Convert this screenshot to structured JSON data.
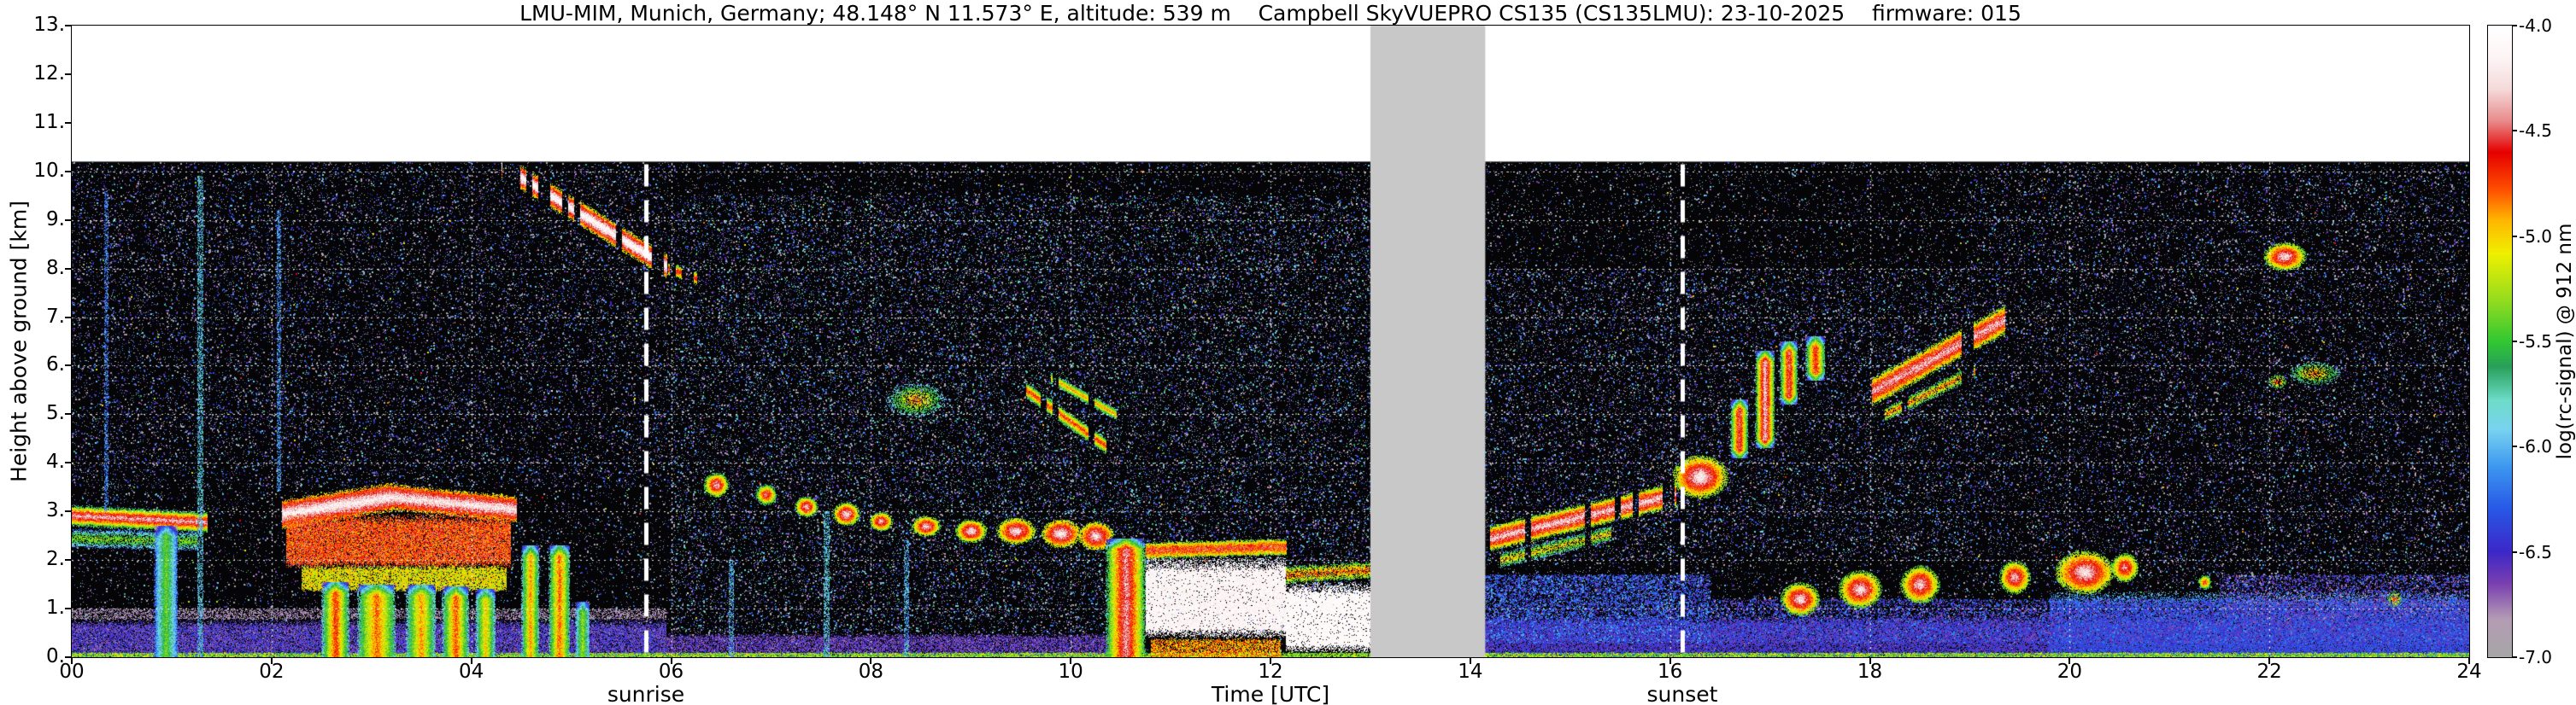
{
  "title": "LMU-MIM, Munich, Germany; 48.148° N 11.573° E, altitude: 539 m    Campbell SkyVUEPRO CS135 (CS135LMU): 23-10-2025    firmware: 015",
  "axes": {
    "ylabel": "Height above ground [km]",
    "xlabel": "Time [UTC]",
    "ylim": [
      0,
      13
    ],
    "xlim": [
      0,
      24
    ],
    "yticks": [
      "13.",
      "12.",
      "11.",
      "10.",
      "9.",
      "8.",
      "7.",
      "6.",
      "5.",
      "4.",
      "3.",
      "2.",
      "1.",
      "0."
    ],
    "xticks": [
      "00",
      "02",
      "04",
      "06",
      "08",
      "10",
      "12",
      "14",
      "16",
      "18",
      "20",
      "22",
      "24"
    ],
    "grid": "white dotted, 1 km horizontal spacing, 2 h vertical spacing"
  },
  "annotations": {
    "sunrise": {
      "label": "sunrise",
      "time_utc": 5.75,
      "line": "white dashed vertical"
    },
    "sunset": {
      "label": "sunset",
      "time_utc": 16.12,
      "line": "white dashed vertical"
    }
  },
  "colorbar": {
    "label": "log(rc-signal) @ 912 nm",
    "ticks": [
      "-4.0",
      "-4.5",
      "-5.0",
      "-5.5",
      "-6.0",
      "-6.5",
      "-7.0"
    ],
    "min": -7.0,
    "max": -4.0,
    "stops": [
      {
        "v": -7.0,
        "c": "#a6a6a6"
      },
      {
        "v": -6.82,
        "c": "#b49cb4"
      },
      {
        "v": -6.65,
        "c": "#7a3fb0"
      },
      {
        "v": -6.5,
        "c": "#3c28c8"
      },
      {
        "v": -6.3,
        "c": "#2857e6"
      },
      {
        "v": -6.1,
        "c": "#3c96f0"
      },
      {
        "v": -5.92,
        "c": "#78d2f0"
      },
      {
        "v": -5.78,
        "c": "#6edcc8"
      },
      {
        "v": -5.62,
        "c": "#28a05a"
      },
      {
        "v": -5.5,
        "c": "#32c832"
      },
      {
        "v": -5.3,
        "c": "#96dc1e"
      },
      {
        "v": -5.08,
        "c": "#f0f000"
      },
      {
        "v": -4.92,
        "c": "#ffb400"
      },
      {
        "v": -4.78,
        "c": "#ff5000"
      },
      {
        "v": -4.6,
        "c": "#e60000"
      },
      {
        "v": -4.45,
        "c": "#e88c8c"
      },
      {
        "v": -4.3,
        "c": "#f5dada"
      },
      {
        "v": -4.15,
        "c": "#fdf5f5"
      },
      {
        "v": -4.0,
        "c": "#ffffff"
      }
    ]
  },
  "colors": {
    "background": "#ffffff",
    "data_background": "#050507",
    "missing_gray": "#c8c8c8",
    "grid": "#ffffff",
    "annotation_line": "#ffffff"
  },
  "chart_data": {
    "type": "heatmap",
    "x_axis": "Time [UTC], 0-24 h",
    "y_axis": "Height above ground [km], 0-13",
    "value": "log(rc-signal) @ 912 nm, color scale -7.0 to -4.0",
    "data_top_km": 10.2,
    "missing_interval": [
      13.0,
      14.15
    ],
    "base_noise": {
      "density": 0.045
    },
    "features": [
      {
        "kind": "layer",
        "t": [
          0,
          5.95
        ],
        "h": [
          0,
          0.78
        ],
        "v": -6.55,
        "jit": 0.45,
        "drop": 0.2
      },
      {
        "kind": "layer",
        "t": [
          0,
          5.95
        ],
        "h": [
          0.78,
          1.02
        ],
        "v": -6.82,
        "jit": 0.25,
        "drop": 0.5
      },
      {
        "kind": "layer",
        "t": [
          5.95,
          10.4
        ],
        "h": [
          0,
          0.5
        ],
        "v": -6.6,
        "jit": 0.35,
        "drop": 0.3
      },
      {
        "kind": "layer",
        "t": [
          14.15,
          24
        ],
        "h": [
          0,
          0.85
        ],
        "v": -6.5,
        "jit": 0.35,
        "drop": 0.2
      },
      {
        "kind": "layer",
        "t": [
          19.8,
          24
        ],
        "h": [
          0,
          1.35
        ],
        "v": -6.35,
        "vTop": -5.95,
        "jit": 0.35,
        "drop": 0.3
      },
      {
        "kind": "layer",
        "t": [
          0,
          24
        ],
        "h": [
          0,
          0.1
        ],
        "v": -5.35,
        "jit": 0.7,
        "drop": 0.15
      },
      {
        "kind": "noise",
        "t": [
          14.15,
          16.4
        ],
        "h": [
          0.3,
          1.7
        ],
        "density": 0.5,
        "vr": [
          -6.6,
          -6.0
        ]
      },
      {
        "kind": "noise",
        "t": [
          16.4,
          24
        ],
        "h": [
          0.3,
          1.2
        ],
        "density": 0.35,
        "vr": [
          -6.7,
          -6.1
        ]
      },
      {
        "kind": "noise",
        "t": [
          21.5,
          24
        ],
        "h": [
          0.8,
          1.7
        ],
        "density": 0.3,
        "vr": [
          -6.8,
          -6.2
        ]
      },
      {
        "kind": "noise",
        "t": [
          6,
          13
        ],
        "h": [
          0.5,
          9.5
        ],
        "density": 0.06,
        "vr": [
          -7,
          -5.6
        ]
      },
      {
        "kind": "noise",
        "t": [
          14.15,
          19
        ],
        "h": [
          2,
          8
        ],
        "density": 0.05,
        "vr": [
          -7,
          -5.8
        ]
      },
      {
        "kind": "noise",
        "t": [
          0,
          6
        ],
        "h": [
          3.5,
          10.1
        ],
        "density": 0.035,
        "vr": [
          -7,
          -5.9
        ]
      },
      {
        "kind": "noise",
        "t": [
          19,
          24
        ],
        "h": [
          1.5,
          10.1
        ],
        "density": 0.035,
        "vr": [
          -7,
          -5.9
        ]
      },
      {
        "kind": "streak",
        "p0": [
          0,
          2.92
        ],
        "p1": [
          1.35,
          2.78
        ],
        "th": 0.22,
        "core": -4.35,
        "edge": -5.8
      },
      {
        "kind": "streak",
        "p0": [
          0,
          2.45
        ],
        "p1": [
          1.25,
          2.4
        ],
        "th": 0.2,
        "core": -5.3,
        "edge": -6.3,
        "drop": 0.3
      },
      {
        "kind": "column",
        "t": [
          0.82,
          1.06
        ],
        "h": [
          0,
          2.7
        ],
        "core": -5.4,
        "edge": -6.3
      },
      {
        "kind": "spike",
        "t": 1.28,
        "w": 0.05,
        "h": [
          0,
          9.9
        ],
        "core": -5.9
      },
      {
        "kind": "spike",
        "t": 0.34,
        "w": 0.035,
        "h": [
          3,
          9.6
        ],
        "core": -6.2
      },
      {
        "kind": "spike",
        "t": 2.07,
        "w": 0.04,
        "h": [
          3.4,
          9.2
        ],
        "core": -6.1
      },
      {
        "kind": "streak",
        "p0": [
          2.1,
          2.95
        ],
        "p1": [
          3.2,
          3.3
        ],
        "th": 0.3,
        "core": -4.15,
        "edge": -5.1
      },
      {
        "kind": "streak",
        "p0": [
          3.2,
          3.3
        ],
        "p1": [
          4.45,
          3.05
        ],
        "th": 0.27,
        "core": -4.2,
        "edge": -5.1
      },
      {
        "kind": "layer",
        "t": [
          2.15,
          4.4
        ],
        "h": [
          1.85,
          2.95
        ],
        "v": -4.7,
        "jit": 0.55,
        "drop": 0.12
      },
      {
        "kind": "layer",
        "t": [
          2.3,
          4.35
        ],
        "h": [
          1.35,
          1.9
        ],
        "v": -5.1,
        "jit": 0.5,
        "drop": 0.15
      },
      {
        "kind": "column",
        "t": [
          2.5,
          2.78
        ],
        "h": [
          0,
          1.55
        ],
        "core": -4.7,
        "edge": -5.9
      },
      {
        "kind": "column",
        "t": [
          2.86,
          3.24
        ],
        "h": [
          0,
          1.5
        ],
        "core": -4.8,
        "edge": -5.8
      },
      {
        "kind": "column",
        "t": [
          3.34,
          3.64
        ],
        "h": [
          0,
          1.5
        ],
        "core": -4.9,
        "edge": -5.9
      },
      {
        "kind": "column",
        "t": [
          3.7,
          3.98
        ],
        "h": [
          0,
          1.45
        ],
        "core": -4.75,
        "edge": -5.9
      },
      {
        "kind": "column",
        "t": [
          4.04,
          4.24
        ],
        "h": [
          0,
          1.4
        ],
        "core": -5.0,
        "edge": -6.0
      },
      {
        "kind": "column",
        "t": [
          4.5,
          4.68
        ],
        "h": [
          0,
          2.3
        ],
        "core": -4.9,
        "edge": -5.9
      },
      {
        "kind": "column",
        "t": [
          4.77,
          4.99
        ],
        "h": [
          0,
          2.3
        ],
        "core": -4.8,
        "edge": -5.8
      },
      {
        "kind": "column",
        "t": [
          5.04,
          5.18
        ],
        "h": [
          0,
          1.15
        ],
        "core": -5.3,
        "edge": -6.1
      },
      {
        "kind": "streak",
        "p0": [
          4.3,
          10.12
        ],
        "p1": [
          5.95,
          8.05
        ],
        "th": 0.26,
        "core": -4.05,
        "edge": -5.3,
        "seg": 0.25
      },
      {
        "kind": "streak",
        "p0": [
          5.97,
          8.0
        ],
        "p1": [
          6.25,
          7.8
        ],
        "th": 0.14,
        "core": -4.6,
        "edge": -5.6,
        "seg": 0.3
      },
      {
        "kind": "blob",
        "c": [
          6.45,
          3.55
        ],
        "r": [
          0.13,
          0.26
        ],
        "core": -4.3,
        "edge": -5.6
      },
      {
        "kind": "blob",
        "c": [
          6.95,
          3.35
        ],
        "r": [
          0.11,
          0.22
        ],
        "core": -4.4,
        "edge": -5.7
      },
      {
        "kind": "blob",
        "c": [
          7.35,
          3.1
        ],
        "r": [
          0.12,
          0.22
        ],
        "core": -4.3,
        "edge": -5.6
      },
      {
        "kind": "blob",
        "c": [
          7.75,
          2.95
        ],
        "r": [
          0.14,
          0.25
        ],
        "core": -4.2,
        "edge": -5.5
      },
      {
        "kind": "blob",
        "c": [
          8.1,
          2.8
        ],
        "r": [
          0.12,
          0.2
        ],
        "core": -4.3,
        "edge": -5.5
      },
      {
        "kind": "blob",
        "c": [
          8.55,
          2.7
        ],
        "r": [
          0.15,
          0.22
        ],
        "core": -4.25,
        "edge": -5.5
      },
      {
        "kind": "blob",
        "c": [
          9.0,
          2.6
        ],
        "r": [
          0.16,
          0.25
        ],
        "core": -4.2,
        "edge": -5.5
      },
      {
        "kind": "blob",
        "c": [
          9.45,
          2.6
        ],
        "r": [
          0.2,
          0.28
        ],
        "core": -4.2,
        "edge": -5.4
      },
      {
        "kind": "blob",
        "c": [
          9.9,
          2.55
        ],
        "r": [
          0.2,
          0.3
        ],
        "core": -4.15,
        "edge": -5.3
      },
      {
        "kind": "blob",
        "c": [
          10.25,
          2.5
        ],
        "r": [
          0.18,
          0.3
        ],
        "core": -4.2,
        "edge": -5.3
      },
      {
        "kind": "blob",
        "c": [
          8.45,
          5.3
        ],
        "r": [
          0.3,
          0.35
        ],
        "core": -4.8,
        "edge": -6.0,
        "noisy": true
      },
      {
        "kind": "streak",
        "p0": [
          9.55,
          5.5
        ],
        "p1": [
          10.35,
          4.35
        ],
        "th": 0.17,
        "core": -4.7,
        "edge": -5.8,
        "seg": 0.3
      },
      {
        "kind": "streak",
        "p0": [
          9.8,
          5.75
        ],
        "p1": [
          10.45,
          5.0
        ],
        "th": 0.12,
        "core": -4.9,
        "edge": -5.9,
        "seg": 0.35
      },
      {
        "kind": "spike",
        "t": 7.55,
        "w": 0.05,
        "h": [
          0,
          3
        ],
        "core": -5.9
      },
      {
        "kind": "spike",
        "t": 8.35,
        "w": 0.04,
        "h": [
          0,
          2.4
        ],
        "core": -6.0
      },
      {
        "kind": "spike",
        "t": 6.6,
        "w": 0.04,
        "h": [
          0,
          2
        ],
        "core": -6.0
      },
      {
        "kind": "column",
        "t": [
          10.35,
          10.75
        ],
        "h": [
          0,
          2.45
        ],
        "core": -4.4,
        "edge": -5.7
      },
      {
        "kind": "layer",
        "t": [
          10.75,
          12.15
        ],
        "h": [
          0.4,
          2.05
        ],
        "v": -4.12,
        "jit": 0.25,
        "drop": 0.05
      },
      {
        "kind": "streak",
        "p0": [
          10.75,
          2.2
        ],
        "p1": [
          12.15,
          2.28
        ],
        "th": 0.17,
        "core": -4.6,
        "edge": -5.4,
        "jit": 0.5
      },
      {
        "kind": "layer",
        "t": [
          12.15,
          13.0
        ],
        "h": [
          0.1,
          1.55
        ],
        "v": -4.08,
        "jit": 0.2,
        "drop": 0.05
      },
      {
        "kind": "streak",
        "p0": [
          12.15,
          1.7
        ],
        "p1": [
          13.0,
          1.8
        ],
        "th": 0.18,
        "core": -4.8,
        "edge": -5.6,
        "jit": 0.5,
        "drop": 0.3
      },
      {
        "kind": "layer",
        "t": [
          10.8,
          12.1
        ],
        "h": [
          0,
          0.4
        ],
        "v": -4.9,
        "jit": 0.6,
        "drop": 0.25
      },
      {
        "kind": "streak",
        "p0": [
          14.2,
          2.45
        ],
        "p1": [
          16.05,
          3.35
        ],
        "th": 0.27,
        "core": -4.3,
        "edge": -5.5,
        "jit": 0.45,
        "seg": 0.3
      },
      {
        "kind": "streak",
        "p0": [
          14.3,
          2.0
        ],
        "p1": [
          15.4,
          2.55
        ],
        "th": 0.16,
        "core": -5.0,
        "edge": -6.0,
        "jit": 0.5,
        "seg": 0.3,
        "drop": 0.3
      },
      {
        "kind": "blob",
        "c": [
          16.3,
          3.72
        ],
        "r": [
          0.28,
          0.45
        ],
        "core": -4.15,
        "edge": -5.4
      },
      {
        "kind": "column",
        "t": [
          16.6,
          16.78
        ],
        "h": [
          4.1,
          5.3
        ],
        "core": -4.5,
        "edge": -5.8
      },
      {
        "kind": "column",
        "t": [
          16.85,
          17.05
        ],
        "h": [
          4.3,
          6.3
        ],
        "core": -4.3,
        "edge": -5.7
      },
      {
        "kind": "column",
        "t": [
          17.1,
          17.28
        ],
        "h": [
          5.2,
          6.5
        ],
        "core": -4.5,
        "edge": -5.8
      },
      {
        "kind": "column",
        "t": [
          17.35,
          17.55
        ],
        "h": [
          5.7,
          6.6
        ],
        "core": -4.6,
        "edge": -5.8
      },
      {
        "kind": "blob",
        "c": [
          17.3,
          1.2
        ],
        "r": [
          0.2,
          0.35
        ],
        "core": -4.2,
        "edge": -5.5
      },
      {
        "kind": "blob",
        "c": [
          17.9,
          1.4
        ],
        "r": [
          0.22,
          0.4
        ],
        "core": -4.2,
        "edge": -5.5
      },
      {
        "kind": "blob",
        "c": [
          18.5,
          1.5
        ],
        "r": [
          0.2,
          0.4
        ],
        "core": -4.25,
        "edge": -5.5
      },
      {
        "kind": "blob",
        "c": [
          19.45,
          1.65
        ],
        "r": [
          0.16,
          0.35
        ],
        "core": -4.3,
        "edge": -5.5
      },
      {
        "kind": "blob",
        "c": [
          20.15,
          1.75
        ],
        "r": [
          0.3,
          0.45
        ],
        "core": -4.2,
        "edge": -5.4
      },
      {
        "kind": "blob",
        "c": [
          20.55,
          1.85
        ],
        "r": [
          0.14,
          0.3
        ],
        "core": -4.4,
        "edge": -5.5
      },
      {
        "kind": "blob",
        "c": [
          21.35,
          1.55
        ],
        "r": [
          0.07,
          0.15
        ],
        "core": -4.6,
        "edge": -5.7
      },
      {
        "kind": "streak",
        "p0": [
          18.0,
          5.45
        ],
        "p1": [
          19.35,
          6.95
        ],
        "th": 0.3,
        "core": -4.35,
        "edge": -5.4,
        "jit": 0.45,
        "seg": 0.22
      },
      {
        "kind": "streak",
        "p0": [
          18.15,
          5.0
        ],
        "p1": [
          19.05,
          5.9
        ],
        "th": 0.15,
        "core": -4.85,
        "edge": -5.8,
        "jit": 0.5,
        "seg": 0.3,
        "drop": 0.25
      },
      {
        "kind": "blob",
        "c": [
          22.15,
          8.25
        ],
        "r": [
          0.22,
          0.3
        ],
        "core": -4.2,
        "edge": -5.5
      },
      {
        "kind": "blob",
        "c": [
          22.45,
          5.85
        ],
        "r": [
          0.26,
          0.25
        ],
        "core": -4.8,
        "edge": -5.9,
        "noisy": true
      },
      {
        "kind": "blob",
        "c": [
          22.08,
          5.68
        ],
        "r": [
          0.1,
          0.15
        ],
        "core": -4.6,
        "edge": -5.8,
        "noisy": true
      },
      {
        "kind": "blob",
        "c": [
          23.25,
          1.2
        ],
        "r": [
          0.08,
          0.18
        ],
        "core": -4.7,
        "edge": -5.8,
        "noisy": true
      }
    ]
  }
}
